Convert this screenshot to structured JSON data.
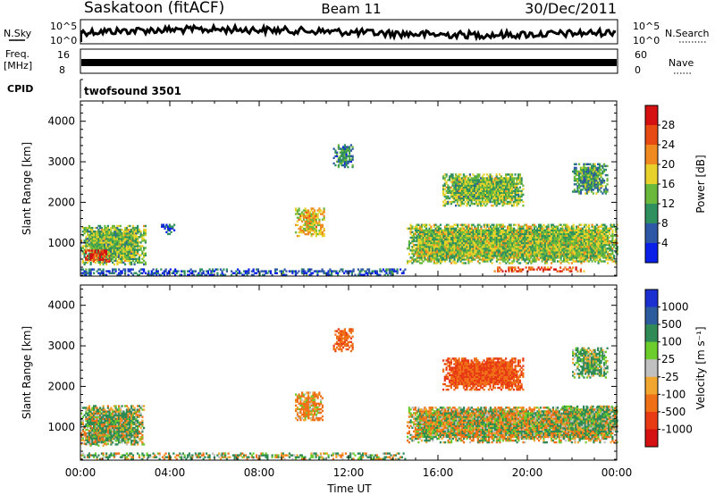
{
  "header": {
    "station": "Saskatoon (fitACF)",
    "beam": "Beam 11",
    "date": "30/Dec/2011"
  },
  "strip_panels": {
    "nsky": {
      "left_label": "N.Sky",
      "right_label": "N.Search",
      "ticks_left": [
        "10^5",
        "10^0"
      ],
      "ticks_right": [
        "10^5",
        "10^0"
      ]
    },
    "freq": {
      "left_label_1": "Freq.",
      "left_label_2": "[MHz]",
      "ticks_left": [
        "16",
        "8"
      ],
      "ticks_right": [
        "60",
        "0"
      ],
      "right_label": "Nave"
    },
    "cpid": {
      "left_label": "CPID",
      "program": "twofsound 3501"
    }
  },
  "chart_data": [
    {
      "type": "heatmap",
      "title": "",
      "xlabel": "Time UT",
      "ylabel": "Slant Range [km]",
      "xlim": [
        0,
        24
      ],
      "ylim": [
        180,
        4500
      ],
      "x_ticks": [
        "00:00",
        "04:00",
        "08:00",
        "12:00",
        "16:00",
        "20:00",
        "00:00"
      ],
      "y_ticks": [
        "1000",
        "2000",
        "3000",
        "4000"
      ],
      "colorbar": {
        "label": "Power [dB]",
        "levels": [
          "4",
          "8",
          "12",
          "16",
          "20",
          "24",
          "28"
        ],
        "colors": [
          "#0a1fe8",
          "#2e57a6",
          "#2e8f5f",
          "#6ab83c",
          "#e8d12a",
          "#ee8a20",
          "#e84a14",
          "#d41010"
        ]
      },
      "regions": [
        {
          "t": [
            0.0,
            2.9
          ],
          "r": [
            450,
            1400
          ],
          "mean": 14
        },
        {
          "t": [
            0.2,
            1.3
          ],
          "r": [
            520,
            820
          ],
          "mean": 27
        },
        {
          "t": [
            3.6,
            4.2
          ],
          "r": [
            1200,
            1450
          ],
          "mean": 6
        },
        {
          "t": [
            9.6,
            10.9
          ],
          "r": [
            1150,
            1850
          ],
          "mean": 18
        },
        {
          "t": [
            11.3,
            12.2
          ],
          "r": [
            2850,
            3400
          ],
          "mean": 9
        },
        {
          "t": [
            14.6,
            24.0
          ],
          "r": [
            480,
            1450
          ],
          "mean": 15
        },
        {
          "t": [
            16.2,
            19.8
          ],
          "r": [
            1900,
            2700
          ],
          "mean": 14
        },
        {
          "t": [
            18.5,
            22.5
          ],
          "r": [
            280,
            380
          ],
          "mean": 26
        },
        {
          "t": [
            22.0,
            23.6
          ],
          "r": [
            2200,
            2950
          ],
          "mean": 11
        },
        {
          "t": [
            0.0,
            14.5
          ],
          "r": [
            190,
            330
          ],
          "mean": 6
        }
      ]
    },
    {
      "type": "heatmap",
      "title": "",
      "xlabel": "Time UT",
      "ylabel": "Slant Range [km]",
      "xlim": [
        0,
        24
      ],
      "ylim": [
        180,
        4500
      ],
      "x_ticks": [
        "00:00",
        "04:00",
        "08:00",
        "12:00",
        "16:00",
        "20:00",
        "00:00"
      ],
      "y_ticks": [
        "1000",
        "2000",
        "3000",
        "4000"
      ],
      "colorbar": {
        "label": "Velocity [m s⁻¹]",
        "levels": [
          "1000",
          "500",
          "100",
          "25",
          "-25",
          "-100",
          "-500",
          "-1000"
        ],
        "colors": [
          "#1c2fd0",
          "#2c5c9e",
          "#2f8a55",
          "#6ccc2c",
          "#c0c0c0",
          "#f1a630",
          "#f07018",
          "#e83a14",
          "#d41010"
        ]
      },
      "regions": [
        {
          "t": [
            0.0,
            2.8
          ],
          "r": [
            550,
            1500
          ],
          "mean": 80
        },
        {
          "t": [
            0.0,
            1.2
          ],
          "r": [
            520,
            900
          ],
          "mean": 0
        },
        {
          "t": [
            9.6,
            10.8
          ],
          "r": [
            1150,
            1850
          ],
          "mean": -150
        },
        {
          "t": [
            11.3,
            12.2
          ],
          "r": [
            2850,
            3400
          ],
          "mean": -400
        },
        {
          "t": [
            14.6,
            24.0
          ],
          "r": [
            600,
            1500
          ],
          "mean": 0
        },
        {
          "t": [
            21.5,
            24.0
          ],
          "r": [
            900,
            1500
          ],
          "mean": 120
        },
        {
          "t": [
            16.2,
            19.8
          ],
          "r": [
            1900,
            2700
          ],
          "mean": -500
        },
        {
          "t": [
            22.0,
            23.6
          ],
          "r": [
            2200,
            2950
          ],
          "mean": 150
        },
        {
          "t": [
            0.0,
            14.5
          ],
          "r": [
            190,
            330
          ],
          "mean": 60
        }
      ]
    }
  ]
}
